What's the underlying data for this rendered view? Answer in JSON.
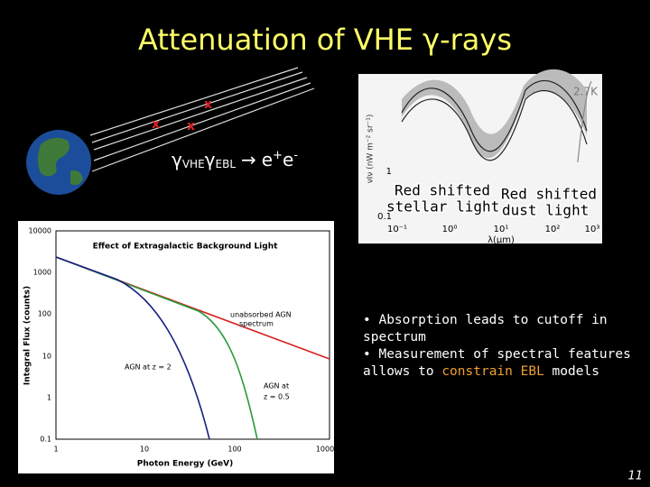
{
  "title": "Attenuation of VHE γ-rays",
  "reaction": {
    "gamma1": "γ",
    "sub1": "VHE",
    "gamma2": "γ",
    "sub2": "EBL",
    "arrow": "→",
    "e1": "e",
    "sup1": "+",
    "e2": "e",
    "sup2": "-"
  },
  "ebl_figure": {
    "label": "2.7K",
    "y_axis_label": "νIν (nW m⁻² sr⁻¹)",
    "y_ticks": [
      "1",
      "0.1"
    ],
    "x_ticks": [
      "10⁻¹",
      "10⁰",
      "10¹",
      "10²",
      "10³"
    ],
    "x_axis_label": "λ(μm)",
    "annotations": [
      [
        "Red shifted",
        "stellar light"
      ],
      [
        "Red shifted",
        "dust light"
      ]
    ]
  },
  "flux_figure": {
    "title": "Effect of Extragalactic Background Light",
    "y_ticks": [
      "10000",
      "1000",
      "100",
      "10",
      "1",
      "0.1"
    ],
    "x_ticks": [
      "1",
      "10",
      "100",
      "1000"
    ],
    "y_axis_label": "Integral Flux (counts)",
    "x_axis_label": "Photon Energy (GeV)",
    "annotations": [
      [
        "unabsorbed AGN",
        "spectrum"
      ],
      [
        "AGN at z = 2"
      ],
      [
        "AGN at",
        "z = 0.5"
      ]
    ]
  },
  "bullets": [
    {
      "before": "Absorption leads to cutoff in spectrum"
    },
    {
      "before": "Measurement of spectral features allows to ",
      "highlight": "constrain EBL",
      "after": " models"
    }
  ],
  "page_number": "11"
}
